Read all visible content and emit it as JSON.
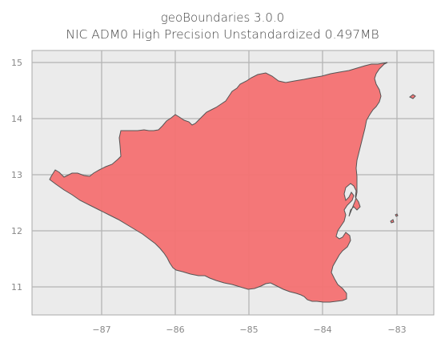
{
  "map": {
    "title_line1": "geoBoundaries 3.0.0",
    "title_line2": "NIC ADM0 High Precision Unstandardized 0.497MB",
    "x_ticks": [
      "−87",
      "−86",
      "−85",
      "−84",
      "−83"
    ],
    "y_ticks": [
      "15",
      "14",
      "13",
      "12",
      "11"
    ],
    "colors": {
      "background": "#ebebeb",
      "grid": "#b4b4b4",
      "fill": "#f47374",
      "stroke": "#555555"
    }
  }
}
